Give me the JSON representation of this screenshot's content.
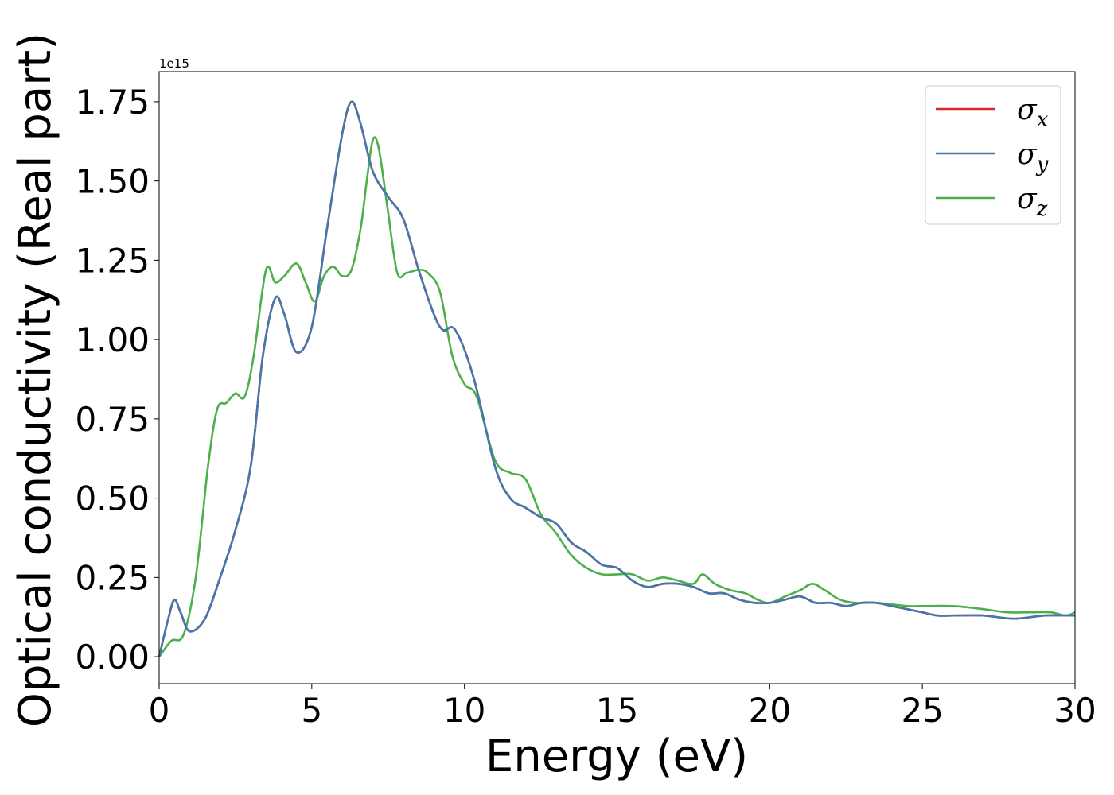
{
  "chart_data": {
    "type": "line",
    "title": "",
    "xlabel": "Energy (eV)",
    "ylabel": "Optical conductivity (Real part)",
    "y_offset_label": "1e15",
    "xlim": [
      0,
      30
    ],
    "ylim": [
      -0.085,
      1.845
    ],
    "x_ticks": [
      0,
      5,
      10,
      15,
      20,
      25,
      30
    ],
    "y_ticks": [
      0.0,
      0.25,
      0.5,
      0.75,
      1.0,
      1.25,
      1.5,
      1.75
    ],
    "x_tick_labels": [
      "0",
      "5",
      "10",
      "15",
      "20",
      "25",
      "30"
    ],
    "y_tick_labels": [
      "0.00",
      "0.25",
      "0.50",
      "0.75",
      "1.00",
      "1.25",
      "1.50",
      "1.75"
    ],
    "grid": false,
    "legend_position": "top-right",
    "series": [
      {
        "name": "σx",
        "legend_symbol": "σ",
        "legend_sub": "x",
        "color": "#d62728",
        "x": [
          0,
          0.3,
          0.5,
          0.7,
          1.0,
          1.5,
          2.0,
          2.5,
          3.0,
          3.4,
          3.8,
          4.1,
          4.5,
          5.0,
          5.5,
          6.0,
          6.3,
          6.6,
          7.0,
          7.5,
          8.0,
          8.5,
          9.0,
          9.3,
          9.7,
          10.3,
          11.0,
          11.5,
          12.0,
          12.5,
          13.0,
          13.5,
          14.0,
          14.5,
          15.0,
          15.5,
          16.0,
          16.5,
          17.0,
          17.5,
          18.0,
          18.5,
          19.0,
          19.5,
          20.0,
          20.5,
          21.0,
          21.5,
          22.0,
          22.5,
          23.0,
          23.5,
          24.0,
          24.5,
          25.0,
          25.5,
          26.0,
          27.0,
          28.0,
          29.0,
          30.0
        ],
        "y": [
          0.0,
          0.12,
          0.18,
          0.14,
          0.08,
          0.12,
          0.25,
          0.4,
          0.6,
          0.95,
          1.13,
          1.08,
          0.96,
          1.04,
          1.35,
          1.65,
          1.75,
          1.68,
          1.53,
          1.45,
          1.38,
          1.22,
          1.08,
          1.03,
          1.03,
          0.88,
          0.6,
          0.5,
          0.47,
          0.44,
          0.42,
          0.36,
          0.33,
          0.29,
          0.28,
          0.24,
          0.22,
          0.23,
          0.23,
          0.22,
          0.2,
          0.2,
          0.18,
          0.17,
          0.17,
          0.18,
          0.19,
          0.17,
          0.17,
          0.16,
          0.17,
          0.17,
          0.16,
          0.15,
          0.14,
          0.13,
          0.13,
          0.13,
          0.12,
          0.13,
          0.13
        ]
      },
      {
        "name": "σy",
        "legend_symbol": "σ",
        "legend_sub": "y",
        "color": "#4477aa",
        "x": [
          0,
          0.3,
          0.5,
          0.7,
          1.0,
          1.5,
          2.0,
          2.5,
          3.0,
          3.4,
          3.8,
          4.1,
          4.5,
          5.0,
          5.5,
          6.0,
          6.3,
          6.6,
          7.0,
          7.5,
          8.0,
          8.5,
          9.0,
          9.3,
          9.7,
          10.3,
          11.0,
          11.5,
          12.0,
          12.5,
          13.0,
          13.5,
          14.0,
          14.5,
          15.0,
          15.5,
          16.0,
          16.5,
          17.0,
          17.5,
          18.0,
          18.5,
          19.0,
          19.5,
          20.0,
          20.5,
          21.0,
          21.5,
          22.0,
          22.5,
          23.0,
          23.5,
          24.0,
          24.5,
          25.0,
          25.5,
          26.0,
          27.0,
          28.0,
          29.0,
          30.0
        ],
        "y": [
          0.0,
          0.12,
          0.18,
          0.14,
          0.08,
          0.12,
          0.25,
          0.4,
          0.6,
          0.95,
          1.13,
          1.08,
          0.96,
          1.04,
          1.35,
          1.65,
          1.75,
          1.68,
          1.53,
          1.45,
          1.38,
          1.22,
          1.08,
          1.03,
          1.03,
          0.88,
          0.6,
          0.5,
          0.47,
          0.44,
          0.42,
          0.36,
          0.33,
          0.29,
          0.28,
          0.24,
          0.22,
          0.23,
          0.23,
          0.22,
          0.2,
          0.2,
          0.18,
          0.17,
          0.17,
          0.18,
          0.19,
          0.17,
          0.17,
          0.16,
          0.17,
          0.17,
          0.16,
          0.15,
          0.14,
          0.13,
          0.13,
          0.13,
          0.12,
          0.13,
          0.13
        ]
      },
      {
        "name": "σz",
        "legend_symbol": "σ",
        "legend_sub": "z",
        "color": "#4daf4a",
        "x": [
          0,
          0.4,
          0.8,
          1.2,
          1.6,
          1.9,
          2.2,
          2.5,
          2.8,
          3.1,
          3.5,
          3.8,
          4.1,
          4.5,
          4.8,
          5.1,
          5.4,
          5.7,
          6.0,
          6.3,
          6.6,
          6.8,
          7.0,
          7.2,
          7.5,
          7.8,
          8.1,
          8.5,
          8.8,
          9.2,
          9.6,
          10.0,
          10.4,
          11.0,
          11.5,
          12.0,
          12.5,
          13.0,
          13.5,
          14.0,
          14.5,
          15.0,
          15.5,
          16.0,
          16.5,
          17.0,
          17.5,
          17.8,
          18.2,
          18.7,
          19.2,
          19.6,
          20.0,
          20.5,
          21.0,
          21.4,
          21.8,
          22.3,
          22.8,
          23.5,
          24.5,
          25.0,
          26.0,
          27.0,
          27.8,
          28.5,
          29.2,
          29.7,
          30.0
        ],
        "y": [
          0.0,
          0.05,
          0.07,
          0.25,
          0.6,
          0.78,
          0.8,
          0.83,
          0.82,
          0.95,
          1.22,
          1.18,
          1.2,
          1.24,
          1.18,
          1.12,
          1.2,
          1.23,
          1.2,
          1.22,
          1.35,
          1.5,
          1.63,
          1.6,
          1.4,
          1.21,
          1.21,
          1.22,
          1.21,
          1.15,
          0.95,
          0.86,
          0.82,
          0.62,
          0.58,
          0.56,
          0.45,
          0.39,
          0.32,
          0.28,
          0.26,
          0.26,
          0.26,
          0.24,
          0.25,
          0.24,
          0.23,
          0.26,
          0.23,
          0.21,
          0.2,
          0.18,
          0.17,
          0.19,
          0.21,
          0.23,
          0.21,
          0.18,
          0.17,
          0.17,
          0.16,
          0.16,
          0.16,
          0.15,
          0.14,
          0.14,
          0.14,
          0.13,
          0.14
        ]
      }
    ]
  }
}
